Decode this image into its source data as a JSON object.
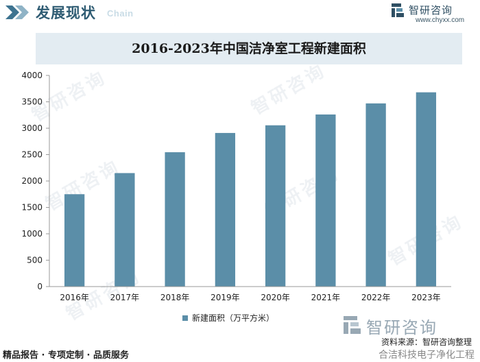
{
  "header": {
    "title": "发展现状",
    "subtitle": "Chain",
    "brand_name": "智研咨询",
    "brand_url": "www.chyxx.com"
  },
  "watermark": "智研咨询",
  "footer": {
    "brand_name": "智研咨询",
    "source": "资料来源：智研咨询整理",
    "tagline": "精品报告 · 专项定制 · 品质服务",
    "credit": "合洁科技电子净化工程"
  },
  "colors": {
    "bar": "#5b8ea8",
    "title_bg": "#e3ecf2",
    "header_text": "#2f5c73"
  },
  "chart_data": {
    "type": "bar",
    "title": "2016-2023年中国洁净室工程新建面积",
    "categories": [
      "2016年",
      "2017年",
      "2018年",
      "2019年",
      "2020年",
      "2021年",
      "2022年",
      "2023年"
    ],
    "series": [
      {
        "name": "新建面积（万平方米）",
        "values": [
          1750,
          2150,
          2545,
          2910,
          3055,
          3260,
          3470,
          3680
        ]
      }
    ],
    "xlabel": "",
    "ylabel": "",
    "ylim": [
      0,
      4000
    ],
    "yticks": [
      "0",
      "500",
      "1000",
      "1500",
      "2000",
      "2500",
      "3000",
      "3500",
      "4000"
    ],
    "grid": false,
    "legend": "bottom"
  }
}
